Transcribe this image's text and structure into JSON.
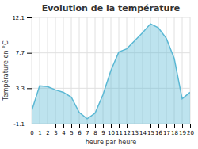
{
  "chart_data": {
    "type": "area",
    "title": "Evolution de la température",
    "x_label": "heure par heure",
    "y_label": "Température en °C",
    "x": [
      0,
      1,
      2,
      3,
      4,
      5,
      6,
      7,
      8,
      9,
      10,
      11,
      12,
      13,
      14,
      15,
      16,
      17,
      18,
      19,
      20
    ],
    "values": [
      0.5,
      3.6,
      3.5,
      3.1,
      2.8,
      2.2,
      0.3,
      -0.5,
      0.2,
      2.5,
      5.5,
      7.8,
      8.2,
      9.2,
      10.2,
      11.3,
      10.8,
      9.5,
      7.0,
      2.0,
      2.8
    ],
    "color": "#5bb8d4",
    "xlim": [
      0,
      20
    ],
    "xticks": [
      0,
      1,
      2,
      3,
      4,
      5,
      6,
      7,
      8,
      9,
      10,
      11,
      12,
      13,
      14,
      15,
      16,
      17,
      18,
      19,
      20
    ],
    "ylim": [
      -1.1,
      12.1
    ],
    "yticks": [
      -1.1,
      3.3,
      7.7,
      12.1
    ],
    "grid": true
  }
}
